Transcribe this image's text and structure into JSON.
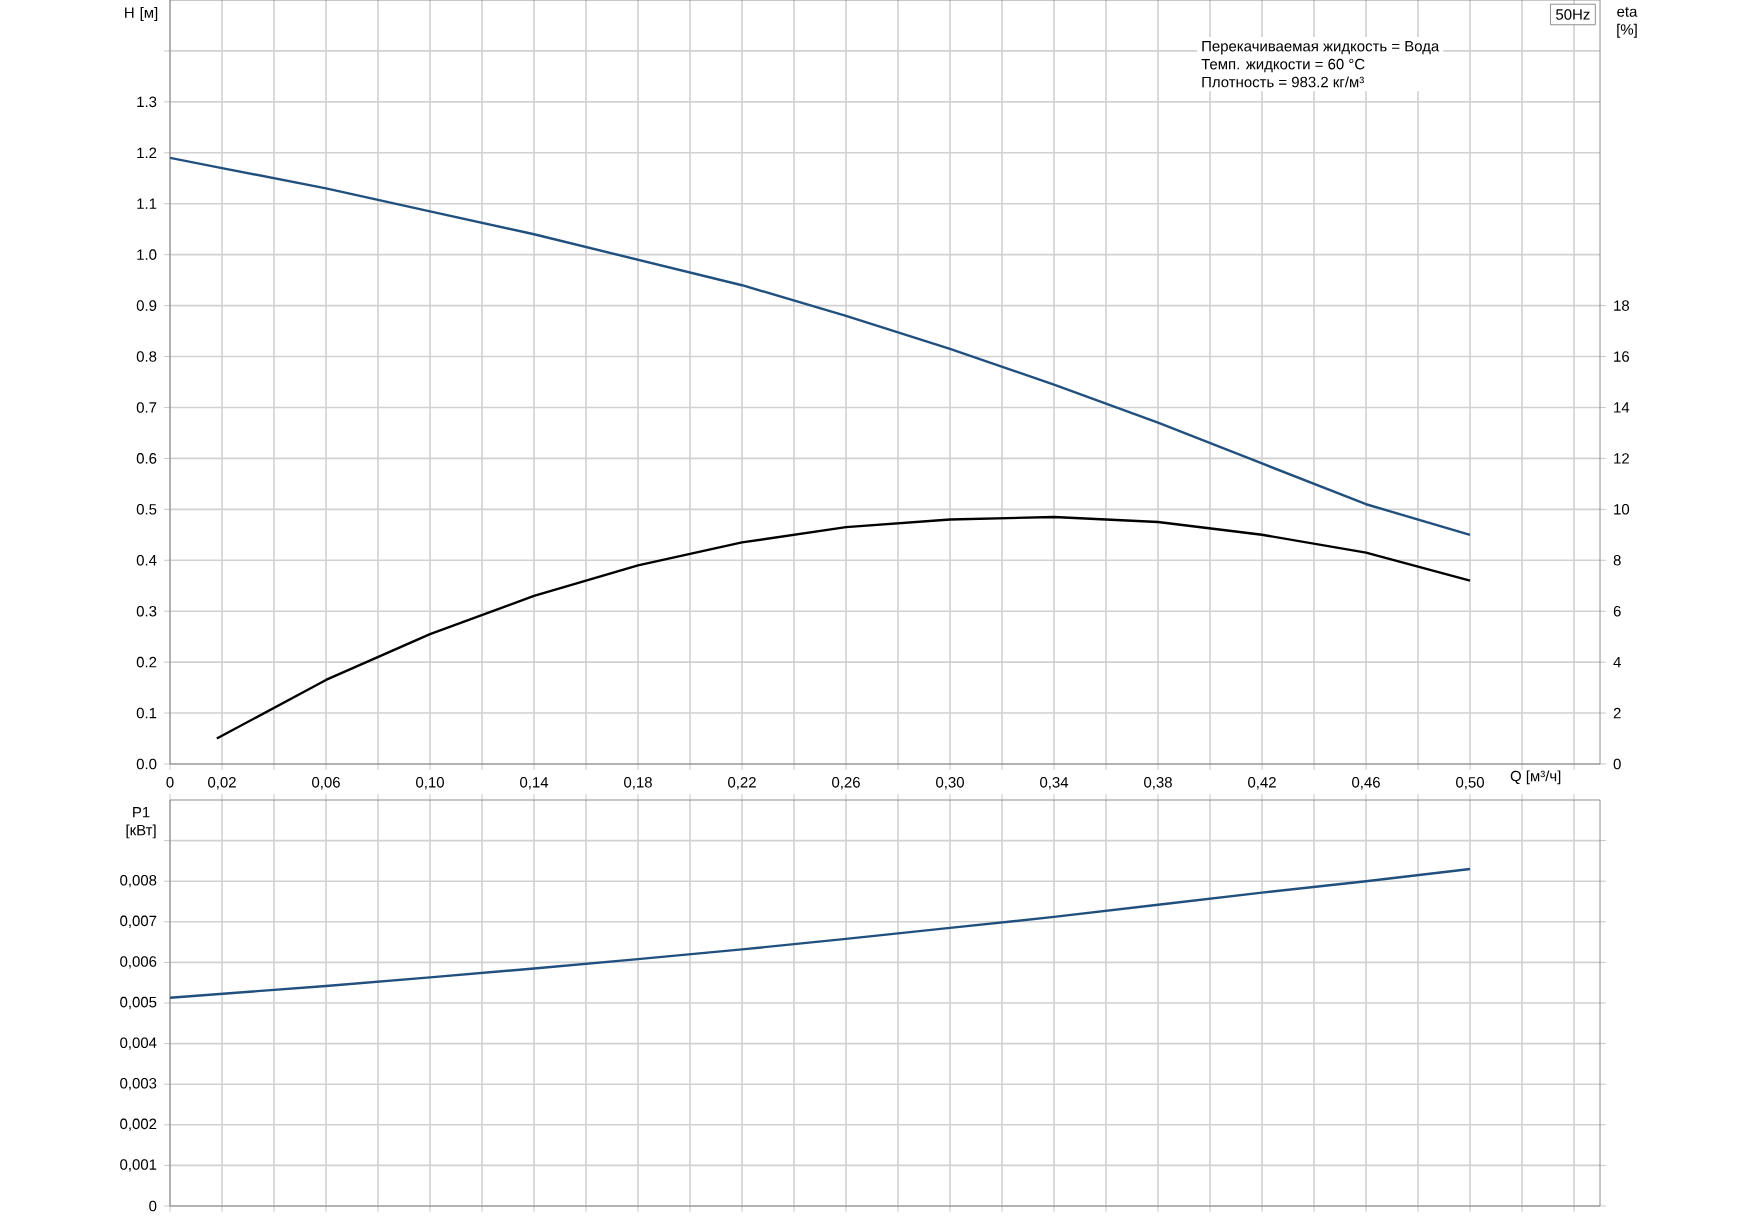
{
  "chart_data": [
    {
      "type": "line",
      "title": "50Hz",
      "xlabel": "Q [м³/ч]",
      "ylabel": "H [м]",
      "y2label": "eta [%]",
      "annotations": [
        "Перекачиваемая жидкость = Вода",
        "Темп. жидкости = 60 °C",
        "Плотность = 983.2 кг/м³"
      ],
      "grid": true,
      "xlim": [
        0,
        0.55
      ],
      "ylim": [
        0,
        1.5
      ],
      "y2lim": [
        0,
        30
      ],
      "xticks": [
        {
          "value": 0,
          "label": "0"
        },
        {
          "value": 0.02,
          "label": "0,02"
        },
        {
          "value": 0.04,
          "label": null
        },
        {
          "value": 0.06,
          "label": "0,06"
        },
        {
          "value": 0.08,
          "label": null
        },
        {
          "value": 0.1,
          "label": "0,10"
        },
        {
          "value": 0.12,
          "label": null
        },
        {
          "value": 0.14,
          "label": "0,14"
        },
        {
          "value": 0.16,
          "label": null
        },
        {
          "value": 0.18,
          "label": "0,18"
        },
        {
          "value": 0.2,
          "label": null
        },
        {
          "value": 0.22,
          "label": "0,22"
        },
        {
          "value": 0.24,
          "label": null
        },
        {
          "value": 0.26,
          "label": "0,26"
        },
        {
          "value": 0.28,
          "label": null
        },
        {
          "value": 0.3,
          "label": "0,30"
        },
        {
          "value": 0.32,
          "label": null
        },
        {
          "value": 0.34,
          "label": "0,34"
        },
        {
          "value": 0.36,
          "label": null
        },
        {
          "value": 0.38,
          "label": "0,38"
        },
        {
          "value": 0.4,
          "label": null
        },
        {
          "value": 0.42,
          "label": "0,42"
        },
        {
          "value": 0.44,
          "label": null
        },
        {
          "value": 0.46,
          "label": "0,46"
        },
        {
          "value": 0.48,
          "label": null
        },
        {
          "value": 0.5,
          "label": "0,50"
        },
        {
          "value": 0.52,
          "label": null
        },
        {
          "value": 0.54,
          "label": null
        }
      ],
      "yticks": [
        {
          "value": 0,
          "label": "0.0"
        },
        {
          "value": 0.1,
          "label": "0.1"
        },
        {
          "value": 0.2,
          "label": "0.2"
        },
        {
          "value": 0.3,
          "label": "0.3"
        },
        {
          "value": 0.4,
          "label": "0.4"
        },
        {
          "value": 0.5,
          "label": "0.5"
        },
        {
          "value": 0.6,
          "label": "0.6"
        },
        {
          "value": 0.7,
          "label": "0.7"
        },
        {
          "value": 0.8,
          "label": "0.8"
        },
        {
          "value": 0.9,
          "label": "0.9"
        },
        {
          "value": 1.0,
          "label": "1.0"
        },
        {
          "value": 1.1,
          "label": "1.1"
        },
        {
          "value": 1.2,
          "label": "1.2"
        },
        {
          "value": 1.3,
          "label": "1.3"
        },
        {
          "value": 1.4,
          "label": null
        }
      ],
      "y2ticks": [
        0,
        2,
        4,
        6,
        8,
        10,
        12,
        14,
        16,
        18
      ],
      "series": [
        {
          "color": "#21507f",
          "x": [
            0,
            0.02,
            0.06,
            0.1,
            0.14,
            0.18,
            0.22,
            0.26,
            0.3,
            0.34,
            0.38,
            0.42,
            0.46,
            0.5
          ],
          "values": [
            1.19,
            1.17,
            1.13,
            1.085,
            1.04,
            0.99,
            0.94,
            0.88,
            0.815,
            0.745,
            0.67,
            0.59,
            0.51,
            0.45
          ]
        },
        {
          "color": "#000000",
          "axis": "y2",
          "x": [
            0.018,
            0.06,
            0.1,
            0.14,
            0.18,
            0.22,
            0.26,
            0.3,
            0.34,
            0.38,
            0.42,
            0.46,
            0.5
          ],
          "values": [
            1.0,
            3.3,
            5.1,
            6.6,
            7.8,
            8.7,
            9.3,
            9.6,
            9.7,
            9.5,
            9.0,
            8.3,
            7.2
          ]
        }
      ]
    },
    {
      "type": "line",
      "ylabel": "P1 [кВт]",
      "grid": true,
      "tick_labels": "y",
      "xlim": [
        0,
        0.55
      ],
      "ylim": [
        0,
        0.01
      ],
      "xticks": [
        0,
        0.02,
        0.04,
        0.06,
        0.08,
        0.1,
        0.12,
        0.14,
        0.16,
        0.18,
        0.2,
        0.22,
        0.24,
        0.26,
        0.28,
        0.3,
        0.32,
        0.34,
        0.36,
        0.38,
        0.4,
        0.42,
        0.44,
        0.46,
        0.48,
        0.5,
        0.52,
        0.54
      ],
      "yticks": [
        {
          "value": 0,
          "label": "0"
        },
        {
          "value": 0.001,
          "label": "0,001"
        },
        {
          "value": 0.002,
          "label": "0,002"
        },
        {
          "value": 0.003,
          "label": "0,003"
        },
        {
          "value": 0.004,
          "label": "0,004"
        },
        {
          "value": 0.005,
          "label": "0,005"
        },
        {
          "value": 0.006,
          "label": "0,006"
        },
        {
          "value": 0.007,
          "label": "0,007"
        },
        {
          "value": 0.008,
          "label": "0,008"
        },
        {
          "value": 0.009,
          "label": null
        }
      ],
      "series": [
        {
          "color": "#21507f",
          "x": [
            0,
            0.06,
            0.1,
            0.14,
            0.18,
            0.22,
            0.26,
            0.3,
            0.34,
            0.38,
            0.42,
            0.46,
            0.5
          ],
          "values": [
            0.00513,
            0.00542,
            0.00563,
            0.00585,
            0.00608,
            0.00632,
            0.00658,
            0.00685,
            0.00712,
            0.00742,
            0.00772,
            0.008,
            0.0083
          ]
        }
      ]
    }
  ]
}
